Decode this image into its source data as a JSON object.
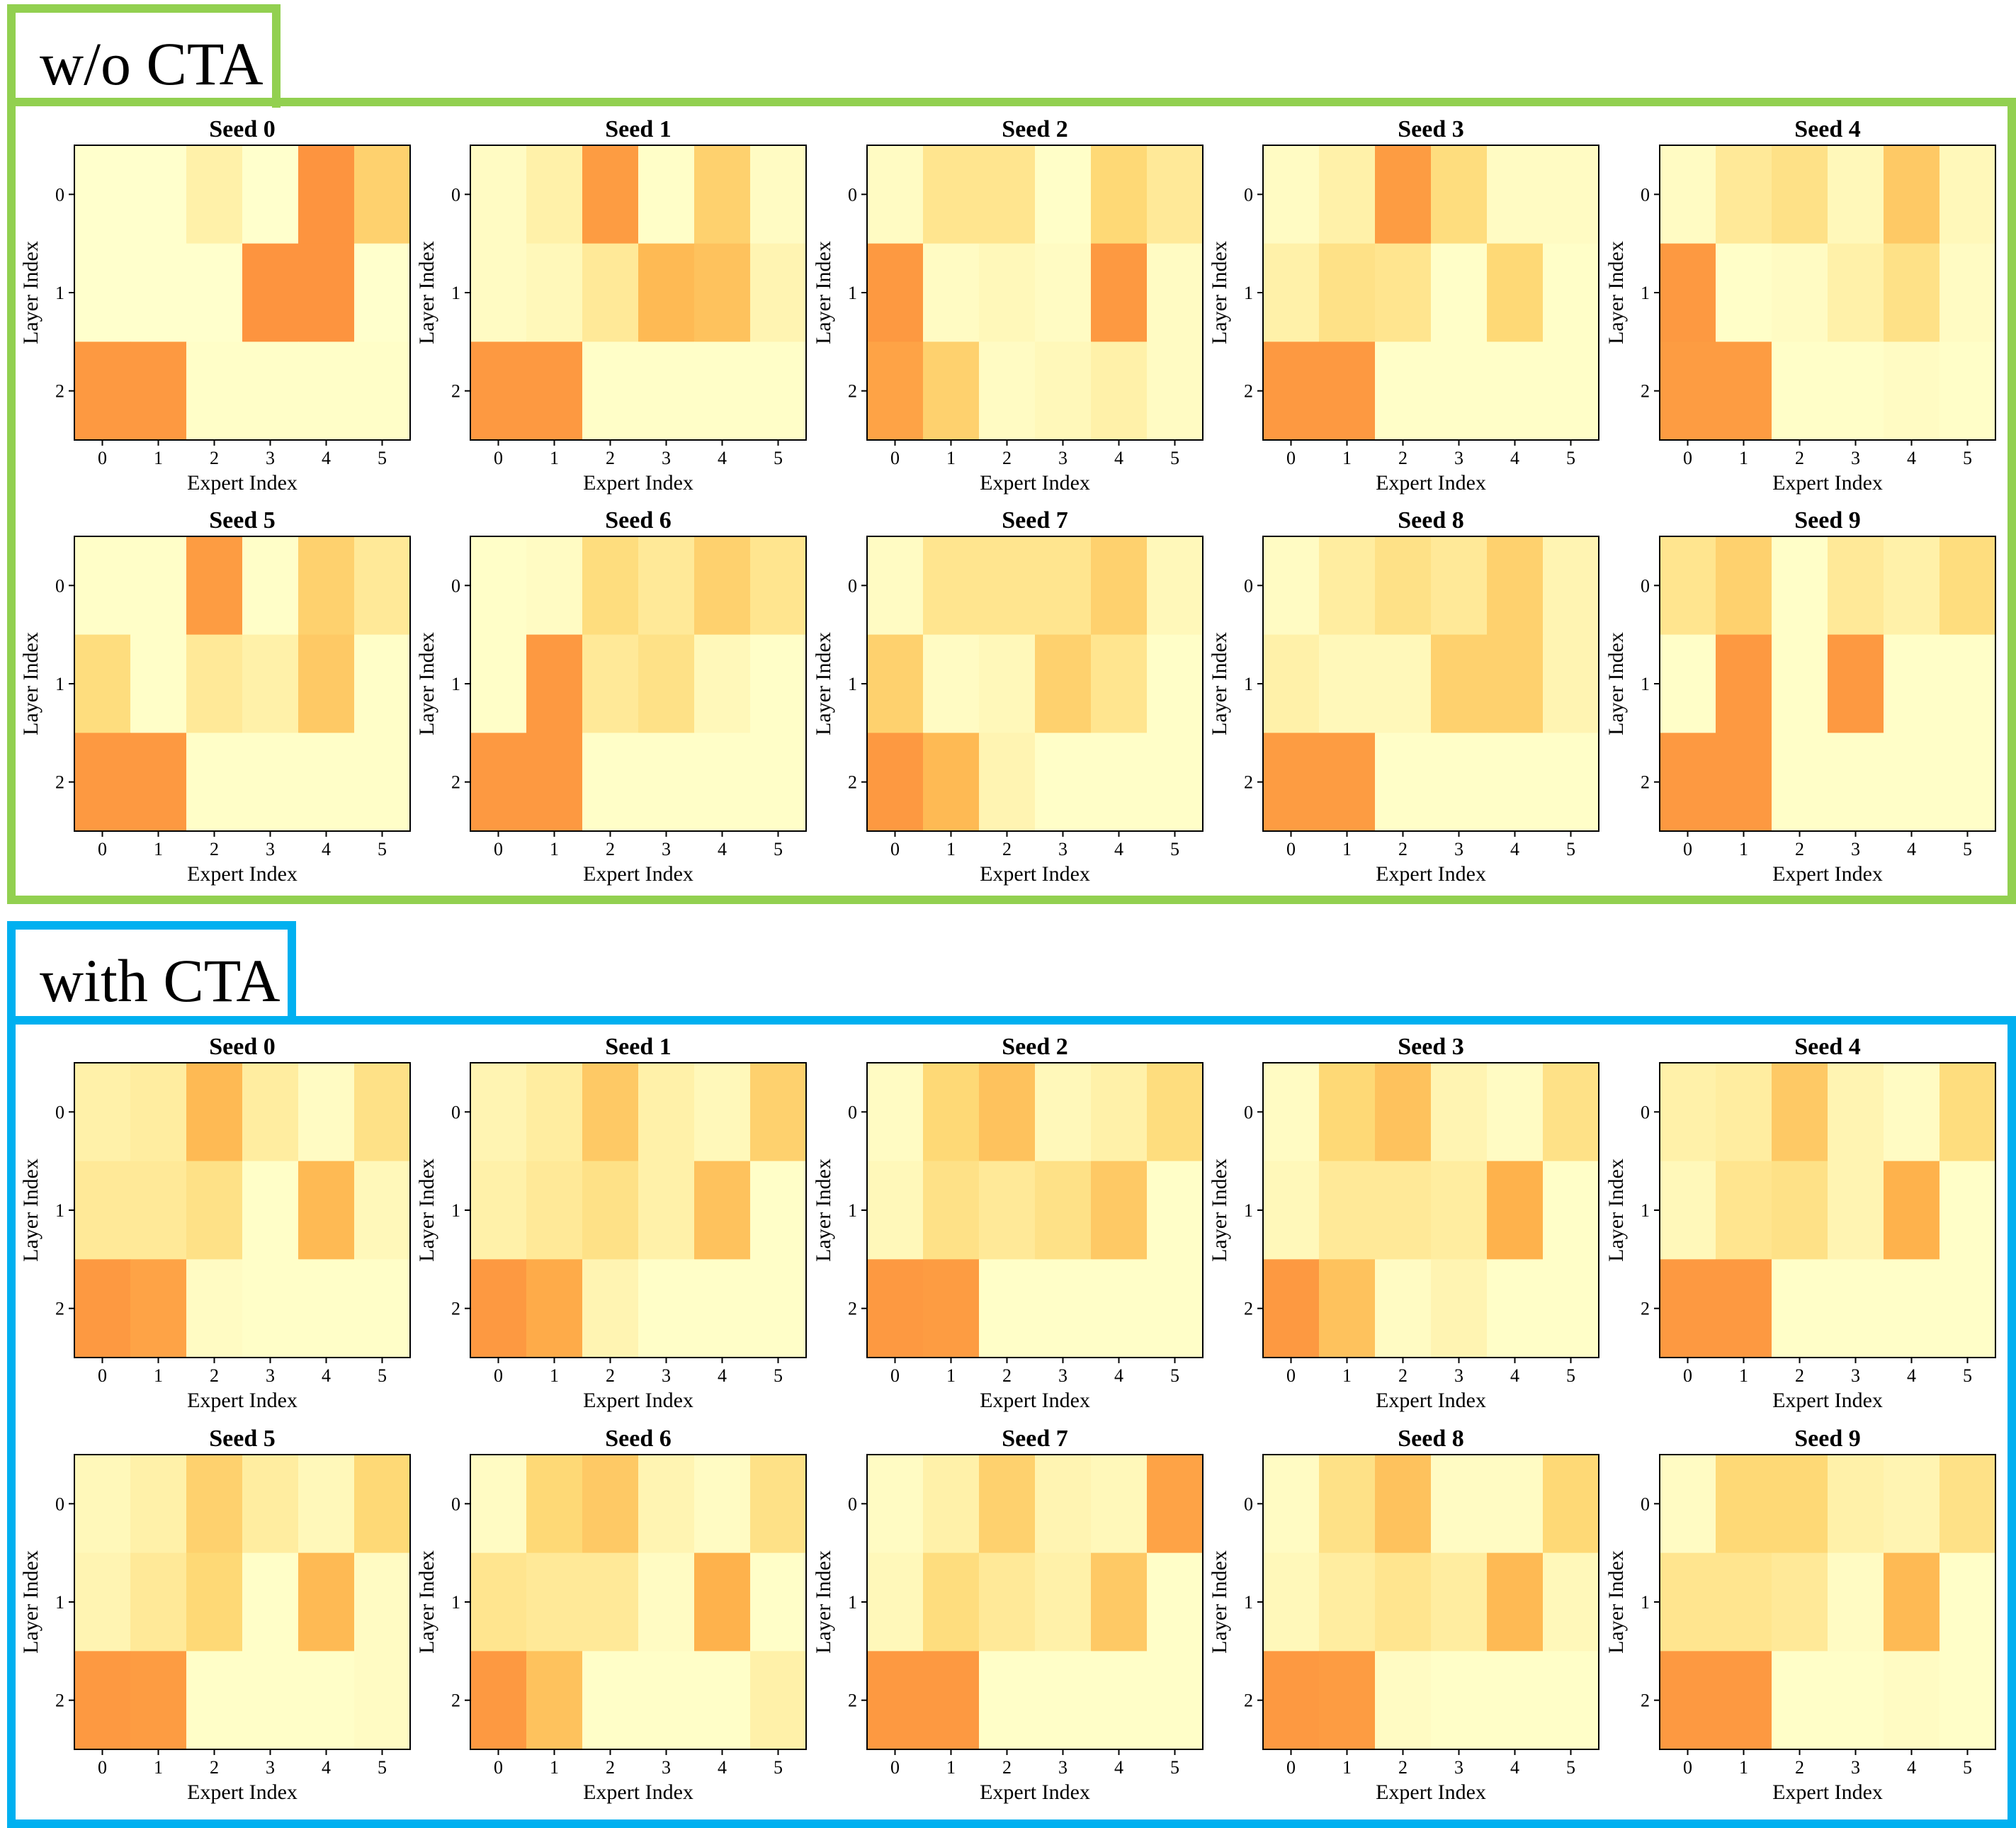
{
  "chart_data": {
    "type": "heatmap",
    "xlabel": "Expert Index",
    "ylabel": "Layer Index",
    "x_ticks": [
      "0",
      "1",
      "2",
      "3",
      "4",
      "5"
    ],
    "y_ticks": [
      "0",
      "1",
      "2"
    ],
    "colormap": [
      "#ffffcc",
      "#ffeda0",
      "#fed976",
      "#feb24c",
      "#fd8d3c"
    ],
    "value_range": [
      0,
      1
    ],
    "groups": [
      {
        "label": "w/o CTA",
        "color": "#92d050",
        "panels": [
          {
            "title": "Seed 0",
            "values": [
              [
                0.0,
                0.0,
                0.2,
                0.0,
                0.95,
                0.55
              ],
              [
                0.0,
                0.0,
                0.0,
                0.95,
                0.95,
                0.0
              ],
              [
                0.92,
                0.92,
                0.02,
                0.02,
                0.02,
                0.02
              ]
            ]
          },
          {
            "title": "Seed 1",
            "values": [
              [
                0.05,
                0.2,
                0.9,
                0.02,
                0.55,
                0.05
              ],
              [
                0.05,
                0.1,
                0.3,
                0.7,
                0.65,
                0.15
              ],
              [
                0.92,
                0.92,
                0.02,
                0.02,
                0.02,
                0.02
              ]
            ]
          },
          {
            "title": "Seed 2",
            "values": [
              [
                0.05,
                0.35,
                0.35,
                0.02,
                0.5,
                0.3
              ],
              [
                0.92,
                0.05,
                0.1,
                0.05,
                0.92,
                0.05
              ],
              [
                0.85,
                0.55,
                0.05,
                0.1,
                0.2,
                0.05
              ]
            ]
          },
          {
            "title": "Seed 3",
            "values": [
              [
                0.05,
                0.2,
                0.9,
                0.45,
                0.05,
                0.05
              ],
              [
                0.2,
                0.4,
                0.35,
                0.02,
                0.5,
                0.02
              ],
              [
                0.92,
                0.92,
                0.02,
                0.02,
                0.02,
                0.02
              ]
            ]
          },
          {
            "title": "Seed 4",
            "values": [
              [
                0.05,
                0.3,
                0.4,
                0.1,
                0.6,
                0.1
              ],
              [
                0.92,
                0.02,
                0.05,
                0.2,
                0.4,
                0.05
              ],
              [
                0.9,
                0.9,
                0.02,
                0.02,
                0.05,
                0.02
              ]
            ]
          },
          {
            "title": "Seed 5",
            "values": [
              [
                0.02,
                0.02,
                0.9,
                0.02,
                0.55,
                0.3
              ],
              [
                0.45,
                0.02,
                0.3,
                0.2,
                0.6,
                0.02
              ],
              [
                0.92,
                0.92,
                0.02,
                0.02,
                0.02,
                0.02
              ]
            ]
          },
          {
            "title": "Seed 6",
            "values": [
              [
                0.02,
                0.05,
                0.45,
                0.3,
                0.55,
                0.35
              ],
              [
                0.02,
                0.92,
                0.3,
                0.4,
                0.1,
                0.02
              ],
              [
                0.92,
                0.92,
                0.02,
                0.02,
                0.02,
                0.02
              ]
            ]
          },
          {
            "title": "Seed 7",
            "values": [
              [
                0.05,
                0.35,
                0.35,
                0.35,
                0.55,
                0.1
              ],
              [
                0.55,
                0.05,
                0.1,
                0.55,
                0.35,
                0.02
              ],
              [
                0.92,
                0.7,
                0.15,
                0.02,
                0.02,
                0.02
              ]
            ]
          },
          {
            "title": "Seed 8",
            "values": [
              [
                0.05,
                0.25,
                0.4,
                0.3,
                0.55,
                0.15
              ],
              [
                0.2,
                0.1,
                0.1,
                0.55,
                0.55,
                0.15
              ],
              [
                0.9,
                0.9,
                0.02,
                0.02,
                0.02,
                0.02
              ]
            ]
          },
          {
            "title": "Seed 9",
            "values": [
              [
                0.35,
                0.55,
                0.02,
                0.3,
                0.2,
                0.45
              ],
              [
                0.02,
                0.92,
                0.02,
                0.92,
                0.02,
                0.02
              ],
              [
                0.92,
                0.92,
                0.02,
                0.02,
                0.02,
                0.02
              ]
            ]
          }
        ]
      },
      {
        "label": "with CTA",
        "color": "#00b0f0",
        "panels": [
          {
            "title": "Seed 0",
            "values": [
              [
                0.2,
                0.25,
                0.7,
                0.25,
                0.05,
                0.4
              ],
              [
                0.3,
                0.3,
                0.4,
                0.02,
                0.7,
                0.1
              ],
              [
                0.92,
                0.85,
                0.05,
                0.02,
                0.02,
                0.02
              ]
            ]
          },
          {
            "title": "Seed 1",
            "values": [
              [
                0.15,
                0.25,
                0.6,
                0.2,
                0.1,
                0.55
              ],
              [
                0.2,
                0.3,
                0.4,
                0.2,
                0.65,
                0.02
              ],
              [
                0.92,
                0.8,
                0.15,
                0.02,
                0.02,
                0.02
              ]
            ]
          },
          {
            "title": "Seed 2",
            "values": [
              [
                0.05,
                0.5,
                0.65,
                0.1,
                0.2,
                0.45
              ],
              [
                0.1,
                0.4,
                0.3,
                0.4,
                0.6,
                0.02
              ],
              [
                0.92,
                0.9,
                0.02,
                0.02,
                0.02,
                0.02
              ]
            ]
          },
          {
            "title": "Seed 3",
            "values": [
              [
                0.05,
                0.5,
                0.65,
                0.15,
                0.05,
                0.4
              ],
              [
                0.1,
                0.3,
                0.3,
                0.25,
                0.75,
                0.02
              ],
              [
                0.92,
                0.65,
                0.05,
                0.15,
                0.02,
                0.02
              ]
            ]
          },
          {
            "title": "Seed 4",
            "values": [
              [
                0.2,
                0.25,
                0.6,
                0.15,
                0.05,
                0.45
              ],
              [
                0.1,
                0.35,
                0.4,
                0.15,
                0.75,
                0.02
              ],
              [
                0.92,
                0.92,
                0.02,
                0.02,
                0.02,
                0.02
              ]
            ]
          },
          {
            "title": "Seed 5",
            "values": [
              [
                0.1,
                0.2,
                0.55,
                0.25,
                0.1,
                0.5
              ],
              [
                0.15,
                0.3,
                0.5,
                0.02,
                0.7,
                0.05
              ],
              [
                0.92,
                0.9,
                0.02,
                0.02,
                0.02,
                0.05
              ]
            ]
          },
          {
            "title": "Seed 6",
            "values": [
              [
                0.05,
                0.5,
                0.6,
                0.15,
                0.05,
                0.4
              ],
              [
                0.35,
                0.3,
                0.3,
                0.05,
                0.75,
                0.02
              ],
              [
                0.92,
                0.65,
                0.02,
                0.02,
                0.02,
                0.2
              ]
            ]
          },
          {
            "title": "Seed 7",
            "values": [
              [
                0.05,
                0.2,
                0.55,
                0.15,
                0.1,
                0.85
              ],
              [
                0.1,
                0.45,
                0.3,
                0.2,
                0.6,
                0.02
              ],
              [
                0.92,
                0.92,
                0.02,
                0.02,
                0.02,
                0.02
              ]
            ]
          },
          {
            "title": "Seed 8",
            "values": [
              [
                0.05,
                0.4,
                0.65,
                0.05,
                0.05,
                0.5
              ],
              [
                0.1,
                0.25,
                0.35,
                0.25,
                0.7,
                0.1
              ],
              [
                0.92,
                0.9,
                0.05,
                0.02,
                0.02,
                0.02
              ]
            ]
          },
          {
            "title": "Seed 9",
            "values": [
              [
                0.05,
                0.5,
                0.5,
                0.2,
                0.15,
                0.4
              ],
              [
                0.35,
                0.35,
                0.3,
                0.05,
                0.7,
                0.02
              ],
              [
                0.92,
                0.92,
                0.02,
                0.02,
                0.05,
                0.02
              ]
            ]
          }
        ]
      }
    ]
  }
}
